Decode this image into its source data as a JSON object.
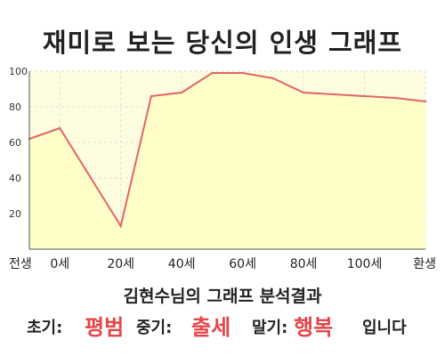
{
  "chart_data": {
    "type": "area",
    "title": "재미로 보는 당신의 인생 그래프",
    "x": [
      -10,
      0,
      20,
      30,
      40,
      50,
      60,
      70,
      80,
      90,
      100,
      110,
      120
    ],
    "values": [
      62,
      68,
      13,
      86,
      88,
      99,
      99,
      96,
      88,
      87,
      86,
      85,
      83
    ],
    "xlim": [
      -10,
      120
    ],
    "ylim": [
      0,
      100
    ],
    "y_ticks": [
      20,
      40,
      60,
      80,
      100
    ],
    "x_ticks": [
      {
        "x": -10,
        "label": "전생"
      },
      {
        "x": 0,
        "label": "0세"
      },
      {
        "x": 20,
        "label": "20세"
      },
      {
        "x": 40,
        "label": "40세"
      },
      {
        "x": 60,
        "label": "60세"
      },
      {
        "x": 80,
        "label": "80세"
      },
      {
        "x": 100,
        "label": "100세"
      },
      {
        "x": 120,
        "label": "환생"
      }
    ],
    "grid": true,
    "line_color": "#e06666",
    "fill_color": "#fffdc8"
  },
  "result": {
    "title": "김현수님의 그래프 분석결과",
    "early_label": "초기:",
    "early_value": "평범",
    "middle_label": "중기:",
    "middle_value": "출세",
    "late_label": "말기:",
    "late_value": "행복",
    "suffix": "입니다"
  },
  "colors": {
    "accent": "#e4464a",
    "plot_bg": "#fffde0",
    "line": "#e06666"
  }
}
